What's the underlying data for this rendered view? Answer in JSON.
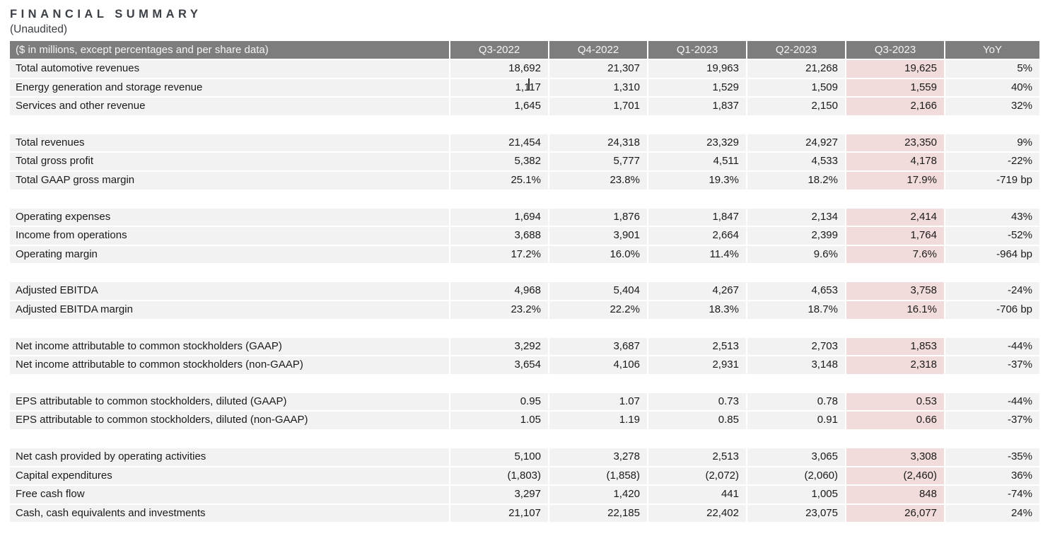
{
  "page": {
    "title": "FINANCIAL SUMMARY",
    "subtitle": "(Unaudited)"
  },
  "table": {
    "header_label": "($ in millions, except percentages and per share data)",
    "columns": [
      "Q3-2022",
      "Q4-2022",
      "Q1-2023",
      "Q2-2023",
      "Q3-2023",
      "YoY"
    ],
    "highlight_column": "Q3-2023",
    "groups": [
      [
        {
          "label": "Total automotive revenues",
          "values": [
            "18,692",
            "21,307",
            "19,963",
            "21,268",
            "19,625",
            "5%"
          ]
        },
        {
          "label": "Energy generation and storage revenue",
          "values": [
            "1,117",
            "1,310",
            "1,529",
            "1,509",
            "1,559",
            "40%"
          ]
        },
        {
          "label": "Services and other revenue",
          "values": [
            "1,645",
            "1,701",
            "1,837",
            "2,150",
            "2,166",
            "32%"
          ]
        }
      ],
      [
        {
          "label": "Total revenues",
          "values": [
            "21,454",
            "24,318",
            "23,329",
            "24,927",
            "23,350",
            "9%"
          ]
        },
        {
          "label": "Total gross profit",
          "values": [
            "5,382",
            "5,777",
            "4,511",
            "4,533",
            "4,178",
            "-22%"
          ]
        },
        {
          "label": "Total GAAP gross margin",
          "values": [
            "25.1%",
            "23.8%",
            "19.3%",
            "18.2%",
            "17.9%",
            "-719 bp"
          ]
        }
      ],
      [
        {
          "label": "Operating expenses",
          "values": [
            "1,694",
            "1,876",
            "1,847",
            "2,134",
            "2,414",
            "43%"
          ]
        },
        {
          "label": "Income from operations",
          "values": [
            "3,688",
            "3,901",
            "2,664",
            "2,399",
            "1,764",
            "-52%"
          ]
        },
        {
          "label": "Operating margin",
          "values": [
            "17.2%",
            "16.0%",
            "11.4%",
            "9.6%",
            "7.6%",
            "-964 bp"
          ]
        }
      ],
      [
        {
          "label": "Adjusted EBITDA",
          "values": [
            "4,968",
            "5,404",
            "4,267",
            "4,653",
            "3,758",
            "-24%"
          ]
        },
        {
          "label": "Adjusted EBITDA margin",
          "values": [
            "23.2%",
            "22.2%",
            "18.3%",
            "18.7%",
            "16.1%",
            "-706 bp"
          ]
        }
      ],
      [
        {
          "label": "Net income attributable to common stockholders (GAAP)",
          "values": [
            "3,292",
            "3,687",
            "2,513",
            "2,703",
            "1,853",
            "-44%"
          ]
        },
        {
          "label": "Net income attributable to common stockholders (non-GAAP)",
          "values": [
            "3,654",
            "4,106",
            "2,931",
            "3,148",
            "2,318",
            "-37%"
          ]
        }
      ],
      [
        {
          "label": "EPS attributable to common stockholders, diluted (GAAP)",
          "values": [
            "0.95",
            "1.07",
            "0.73",
            "0.78",
            "0.53",
            "-44%"
          ]
        },
        {
          "label": "EPS attributable to common stockholders, diluted (non-GAAP)",
          "values": [
            "1.05",
            "1.19",
            "0.85",
            "0.91",
            "0.66",
            "-37%"
          ]
        }
      ],
      [
        {
          "label": "Net cash provided by operating activities",
          "values": [
            "5,100",
            "3,278",
            "2,513",
            "3,065",
            "3,308",
            "-35%"
          ]
        },
        {
          "label": "Capital expenditures",
          "values": [
            "(1,803)",
            "(1,858)",
            "(2,072)",
            "(2,060)",
            "(2,460)",
            "36%"
          ]
        },
        {
          "label": "Free cash flow",
          "values": [
            "3,297",
            "1,420",
            "441",
            "1,005",
            "848",
            "-74%"
          ]
        },
        {
          "label": "Cash, cash equivalents and investments",
          "values": [
            "21,107",
            "22,185",
            "22,402",
            "23,075",
            "26,077",
            "24%"
          ]
        }
      ]
    ]
  },
  "colors": {
    "header_bg": "#7d7d7d",
    "header_text": "#f4f4f2",
    "row_bg": "#f2f2f2",
    "highlight_bg": "#f2dcdb",
    "text": "#1a1a1a",
    "title_text": "#3a3e45"
  }
}
